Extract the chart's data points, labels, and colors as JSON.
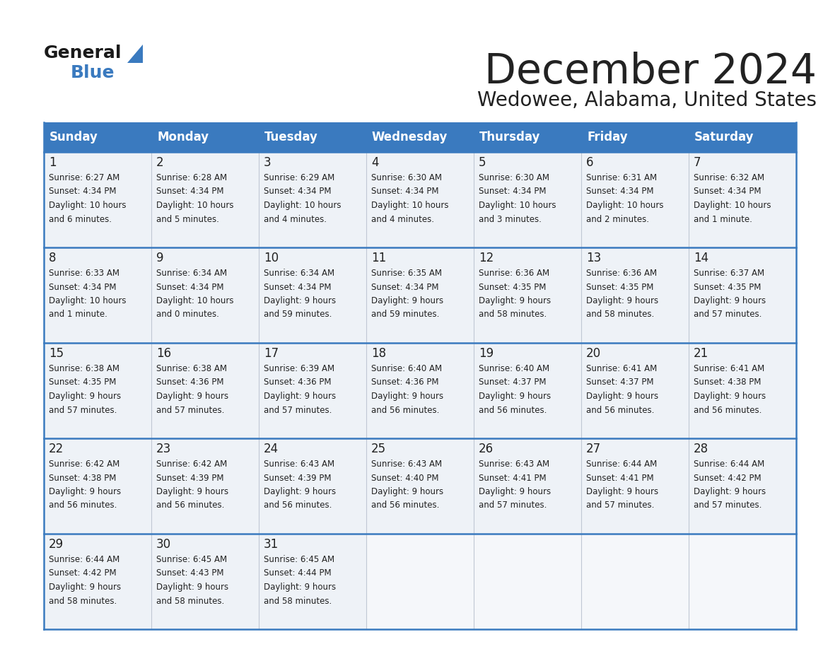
{
  "title": "December 2024",
  "subtitle": "Wedowee, Alabama, United States",
  "header_color": "#3a7abf",
  "header_text_color": "#ffffff",
  "cell_bg_color": "#eef2f7",
  "empty_cell_bg_color": "#f5f7fa",
  "border_color": "#3a7abf",
  "row_divider_color": "#3a7abf",
  "col_divider_color": "#c0c8d4",
  "text_color": "#222222",
  "days_of_week": [
    "Sunday",
    "Monday",
    "Tuesday",
    "Wednesday",
    "Thursday",
    "Friday",
    "Saturday"
  ],
  "calendar_data": [
    [
      {
        "day": 1,
        "sunrise": "6:27 AM",
        "sunset": "4:34 PM",
        "daylight": "10 hours and 6 minutes."
      },
      {
        "day": 2,
        "sunrise": "6:28 AM",
        "sunset": "4:34 PM",
        "daylight": "10 hours and 5 minutes."
      },
      {
        "day": 3,
        "sunrise": "6:29 AM",
        "sunset": "4:34 PM",
        "daylight": "10 hours and 4 minutes."
      },
      {
        "day": 4,
        "sunrise": "6:30 AM",
        "sunset": "4:34 PM",
        "daylight": "10 hours and 4 minutes."
      },
      {
        "day": 5,
        "sunrise": "6:30 AM",
        "sunset": "4:34 PM",
        "daylight": "10 hours and 3 minutes."
      },
      {
        "day": 6,
        "sunrise": "6:31 AM",
        "sunset": "4:34 PM",
        "daylight": "10 hours and 2 minutes."
      },
      {
        "day": 7,
        "sunrise": "6:32 AM",
        "sunset": "4:34 PM",
        "daylight": "10 hours and 1 minute."
      }
    ],
    [
      {
        "day": 8,
        "sunrise": "6:33 AM",
        "sunset": "4:34 PM",
        "daylight": "10 hours and 1 minute."
      },
      {
        "day": 9,
        "sunrise": "6:34 AM",
        "sunset": "4:34 PM",
        "daylight": "10 hours and 0 minutes."
      },
      {
        "day": 10,
        "sunrise": "6:34 AM",
        "sunset": "4:34 PM",
        "daylight": "9 hours and 59 minutes."
      },
      {
        "day": 11,
        "sunrise": "6:35 AM",
        "sunset": "4:34 PM",
        "daylight": "9 hours and 59 minutes."
      },
      {
        "day": 12,
        "sunrise": "6:36 AM",
        "sunset": "4:35 PM",
        "daylight": "9 hours and 58 minutes."
      },
      {
        "day": 13,
        "sunrise": "6:36 AM",
        "sunset": "4:35 PM",
        "daylight": "9 hours and 58 minutes."
      },
      {
        "day": 14,
        "sunrise": "6:37 AM",
        "sunset": "4:35 PM",
        "daylight": "9 hours and 57 minutes."
      }
    ],
    [
      {
        "day": 15,
        "sunrise": "6:38 AM",
        "sunset": "4:35 PM",
        "daylight": "9 hours and 57 minutes."
      },
      {
        "day": 16,
        "sunrise": "6:38 AM",
        "sunset": "4:36 PM",
        "daylight": "9 hours and 57 minutes."
      },
      {
        "day": 17,
        "sunrise": "6:39 AM",
        "sunset": "4:36 PM",
        "daylight": "9 hours and 57 minutes."
      },
      {
        "day": 18,
        "sunrise": "6:40 AM",
        "sunset": "4:36 PM",
        "daylight": "9 hours and 56 minutes."
      },
      {
        "day": 19,
        "sunrise": "6:40 AM",
        "sunset": "4:37 PM",
        "daylight": "9 hours and 56 minutes."
      },
      {
        "day": 20,
        "sunrise": "6:41 AM",
        "sunset": "4:37 PM",
        "daylight": "9 hours and 56 minutes."
      },
      {
        "day": 21,
        "sunrise": "6:41 AM",
        "sunset": "4:38 PM",
        "daylight": "9 hours and 56 minutes."
      }
    ],
    [
      {
        "day": 22,
        "sunrise": "6:42 AM",
        "sunset": "4:38 PM",
        "daylight": "9 hours and 56 minutes."
      },
      {
        "day": 23,
        "sunrise": "6:42 AM",
        "sunset": "4:39 PM",
        "daylight": "9 hours and 56 minutes."
      },
      {
        "day": 24,
        "sunrise": "6:43 AM",
        "sunset": "4:39 PM",
        "daylight": "9 hours and 56 minutes."
      },
      {
        "day": 25,
        "sunrise": "6:43 AM",
        "sunset": "4:40 PM",
        "daylight": "9 hours and 56 minutes."
      },
      {
        "day": 26,
        "sunrise": "6:43 AM",
        "sunset": "4:41 PM",
        "daylight": "9 hours and 57 minutes."
      },
      {
        "day": 27,
        "sunrise": "6:44 AM",
        "sunset": "4:41 PM",
        "daylight": "9 hours and 57 minutes."
      },
      {
        "day": 28,
        "sunrise": "6:44 AM",
        "sunset": "4:42 PM",
        "daylight": "9 hours and 57 minutes."
      }
    ],
    [
      {
        "day": 29,
        "sunrise": "6:44 AM",
        "sunset": "4:42 PM",
        "daylight": "9 hours and 58 minutes."
      },
      {
        "day": 30,
        "sunrise": "6:45 AM",
        "sunset": "4:43 PM",
        "daylight": "9 hours and 58 minutes."
      },
      {
        "day": 31,
        "sunrise": "6:45 AM",
        "sunset": "4:44 PM",
        "daylight": "9 hours and 58 minutes."
      },
      null,
      null,
      null,
      null
    ]
  ]
}
